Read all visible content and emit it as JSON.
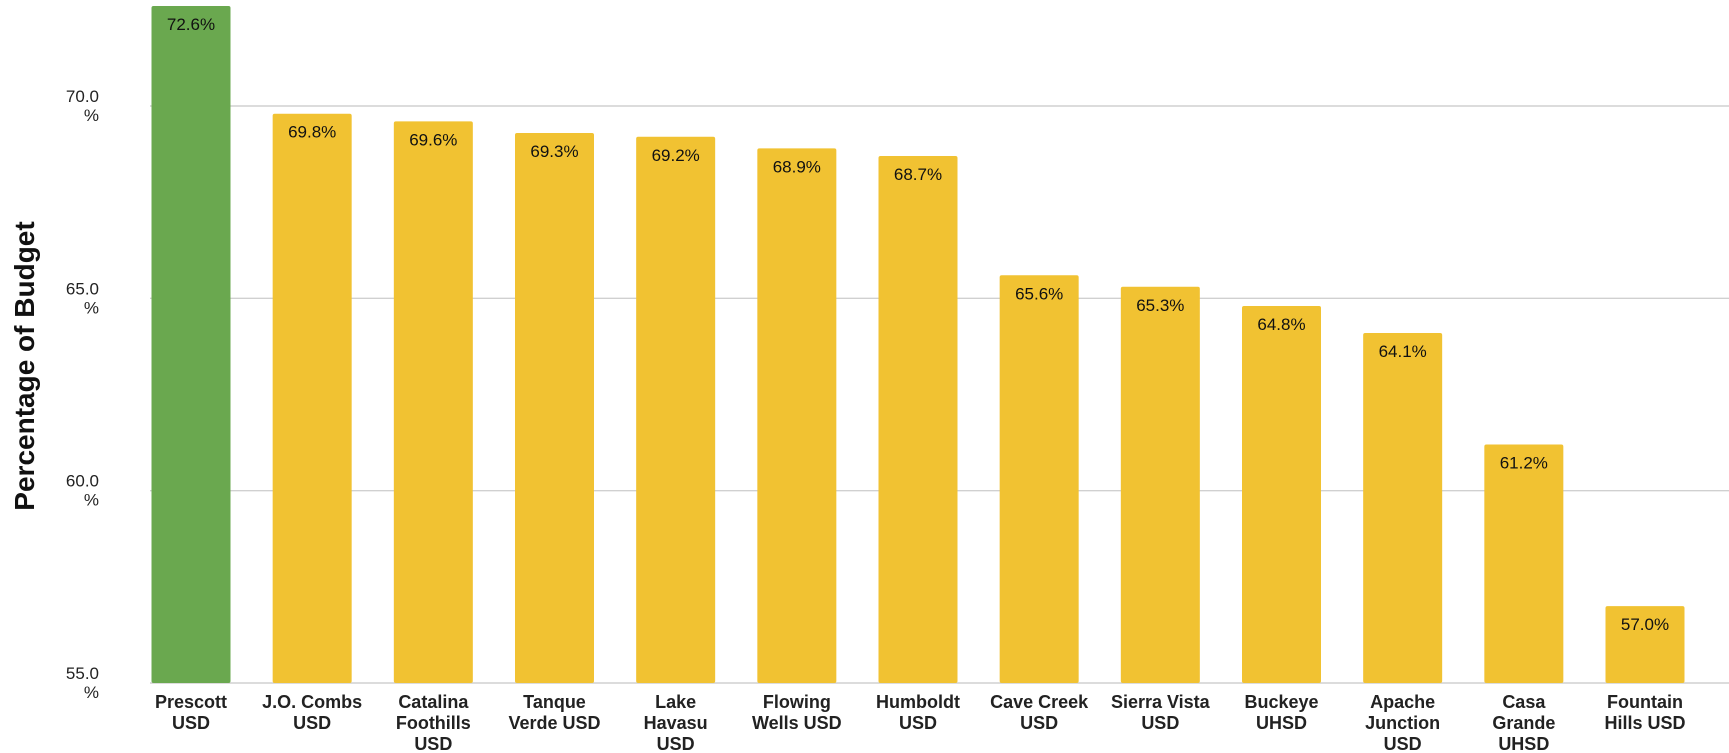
{
  "chart_data": {
    "type": "bar",
    "ylabel": "Percentage of Budget",
    "ylim": [
      55.0,
      72.6
    ],
    "yticks": [
      {
        "value": 55.0,
        "label": [
          "55.0",
          "%"
        ]
      },
      {
        "value": 60.0,
        "label": [
          "60.0",
          "%"
        ]
      },
      {
        "value": 65.0,
        "label": [
          "65.0",
          "%"
        ]
      },
      {
        "value": 70.0,
        "label": [
          "70.0",
          "%"
        ]
      }
    ],
    "grid": true,
    "legend": "none",
    "categories": [
      [
        "Prescott",
        "USD"
      ],
      [
        "J.O. Combs",
        "USD"
      ],
      [
        "Catalina",
        "Foothills",
        "USD"
      ],
      [
        "Tanque",
        "Verde USD"
      ],
      [
        "Lake",
        "Havasu",
        "USD"
      ],
      [
        "Flowing",
        "Wells USD"
      ],
      [
        "Humboldt",
        "USD"
      ],
      [
        "Cave Creek",
        "USD"
      ],
      [
        "Sierra Vista",
        "USD"
      ],
      [
        "Buckeye",
        "UHSD"
      ],
      [
        "Apache",
        "Junction",
        "USD"
      ],
      [
        "Casa",
        "Grande",
        "UHSD"
      ],
      [
        "Fountain",
        "Hills USD"
      ]
    ],
    "values": [
      72.6,
      69.8,
      69.6,
      69.3,
      69.2,
      68.9,
      68.7,
      65.6,
      65.3,
      64.8,
      64.1,
      61.2,
      57.0
    ],
    "data_labels": [
      "72.6%",
      "69.8%",
      "69.6%",
      "69.3%",
      "69.2%",
      "68.9%",
      "68.7%",
      "65.6%",
      "65.3%",
      "64.8%",
      "64.1%",
      "61.2%",
      "57.0%"
    ],
    "colors": {
      "highlight": "#6aa84f",
      "default": "#f1c232"
    },
    "highlight_index": 0
  }
}
